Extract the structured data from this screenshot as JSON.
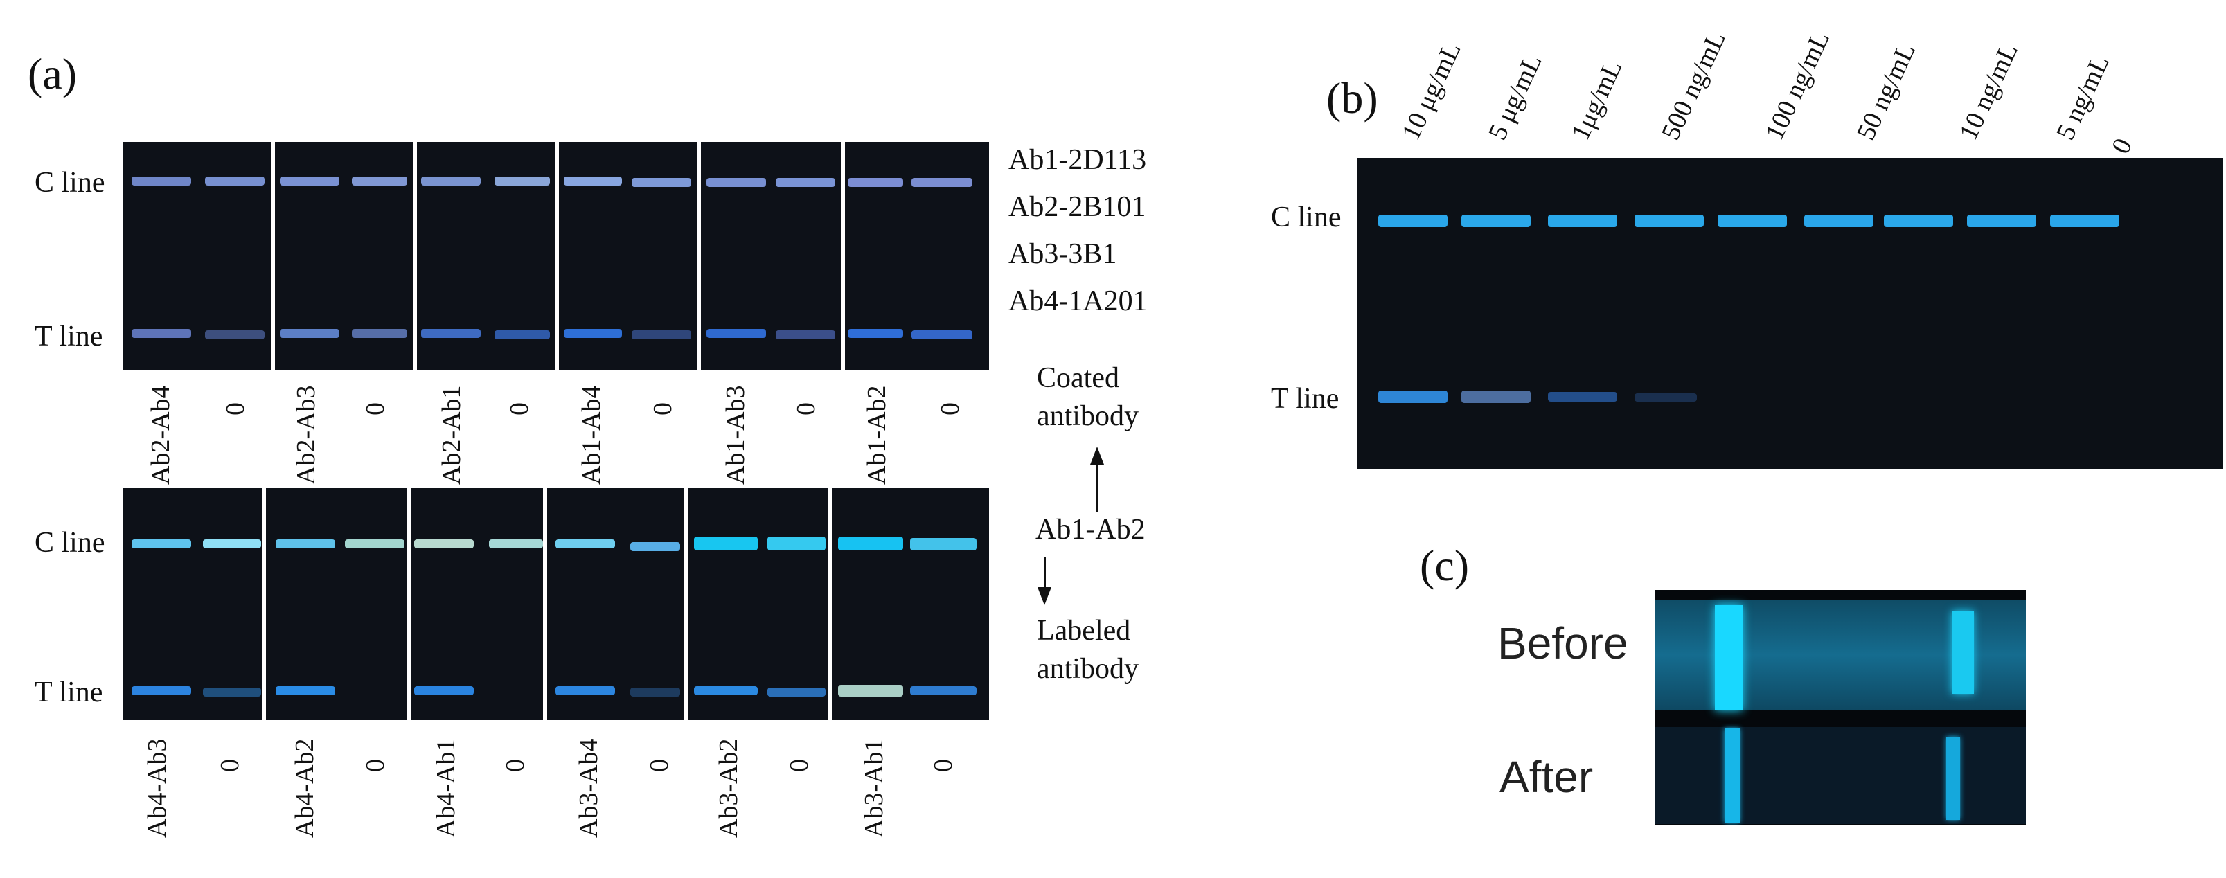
{
  "panel_a": {
    "label": "(a)",
    "row_labels": {
      "c_line": "C line",
      "t_line": "T line"
    },
    "legend": [
      "Ab1-2D113",
      "Ab2-2B101",
      "Ab3-3B1",
      "Ab4-1A201"
    ],
    "coated_note": [
      "Coated",
      "antibody"
    ],
    "pair_note": "Ab1-Ab2",
    "labeled_note": [
      "Labeled",
      "antibody"
    ],
    "top_row_strips": [
      "Ab2-Ab4",
      "0",
      "Ab2-Ab3",
      "0",
      "Ab2-Ab1",
      "0",
      "Ab1-Ab4",
      "0",
      "Ab1-Ab3",
      "0",
      "Ab1-Ab2",
      "0"
    ],
    "bottom_row_strips": [
      "Ab4-Ab3",
      "0",
      "Ab4-Ab2",
      "0",
      "Ab4-Ab1",
      "0",
      "Ab3-Ab4",
      "0",
      "Ab3-Ab2",
      "0",
      "Ab3-Ab1",
      "0"
    ]
  },
  "panel_b": {
    "label": "(b)",
    "row_labels": {
      "c_line": "C line",
      "t_line": "T line"
    },
    "concentrations": [
      "10 μg/mL",
      "5 μg/mL",
      "1μg/mL",
      "500 ng/mL",
      "100 ng/mL",
      "50 ng/mL",
      "10 ng/mL",
      "5 ng/mL",
      "0"
    ]
  },
  "panel_c": {
    "label": "(c)",
    "before": "Before",
    "after": "After"
  },
  "colors": {
    "strip_bg": "#0d1118",
    "c_band_top": "#7f9ad6",
    "c_band_bottom": "#58b8e8",
    "t_band": "#3c77d8",
    "fluor_cyan": "#19c6f2"
  }
}
